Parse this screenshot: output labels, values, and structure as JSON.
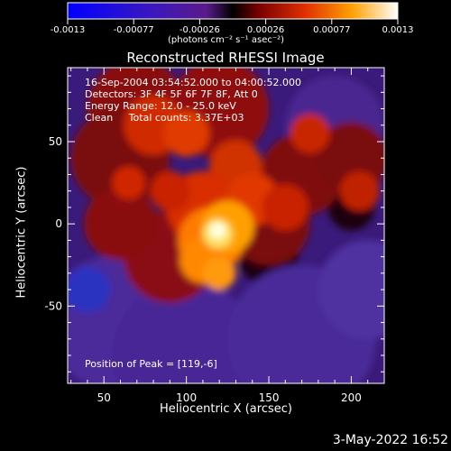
{
  "chart_data": {
    "type": "heatmap",
    "title": "Reconstructed RHESSI Image",
    "xlabel": "Heliocentric X (arcsec)",
    "ylabel": "Heliocentric Y (arcsec)",
    "xlim": [
      28,
      220
    ],
    "ylim": [
      -97,
      95
    ],
    "xticks": [
      50,
      100,
      150,
      200
    ],
    "yticks": [
      -50,
      0,
      50
    ],
    "colorbar": {
      "range": [
        -0.0013,
        0.0013
      ],
      "ticks": [
        "-0.0013",
        "-0.00077",
        "-0.00026",
        "0.00026",
        "0.00077",
        "0.0013"
      ],
      "unit_label": "(photons cm⁻² s⁻¹ asec⁻²)"
    },
    "annotations": [
      "16-Sep-2004 03:54:52.000 to 04:00:52.000",
      "Detectors: 3F 4F 5F 6F 7F 8F, Att 0",
      "Energy Range: 12.0 - 25.0 keV",
      "Clean     Total counts: 3.37E+03"
    ],
    "peak_label": "Position of Peak = [119,-6]",
    "peak": [
      119,
      -6
    ]
  },
  "footer": {
    "date": "3-May-2022 16:52"
  }
}
